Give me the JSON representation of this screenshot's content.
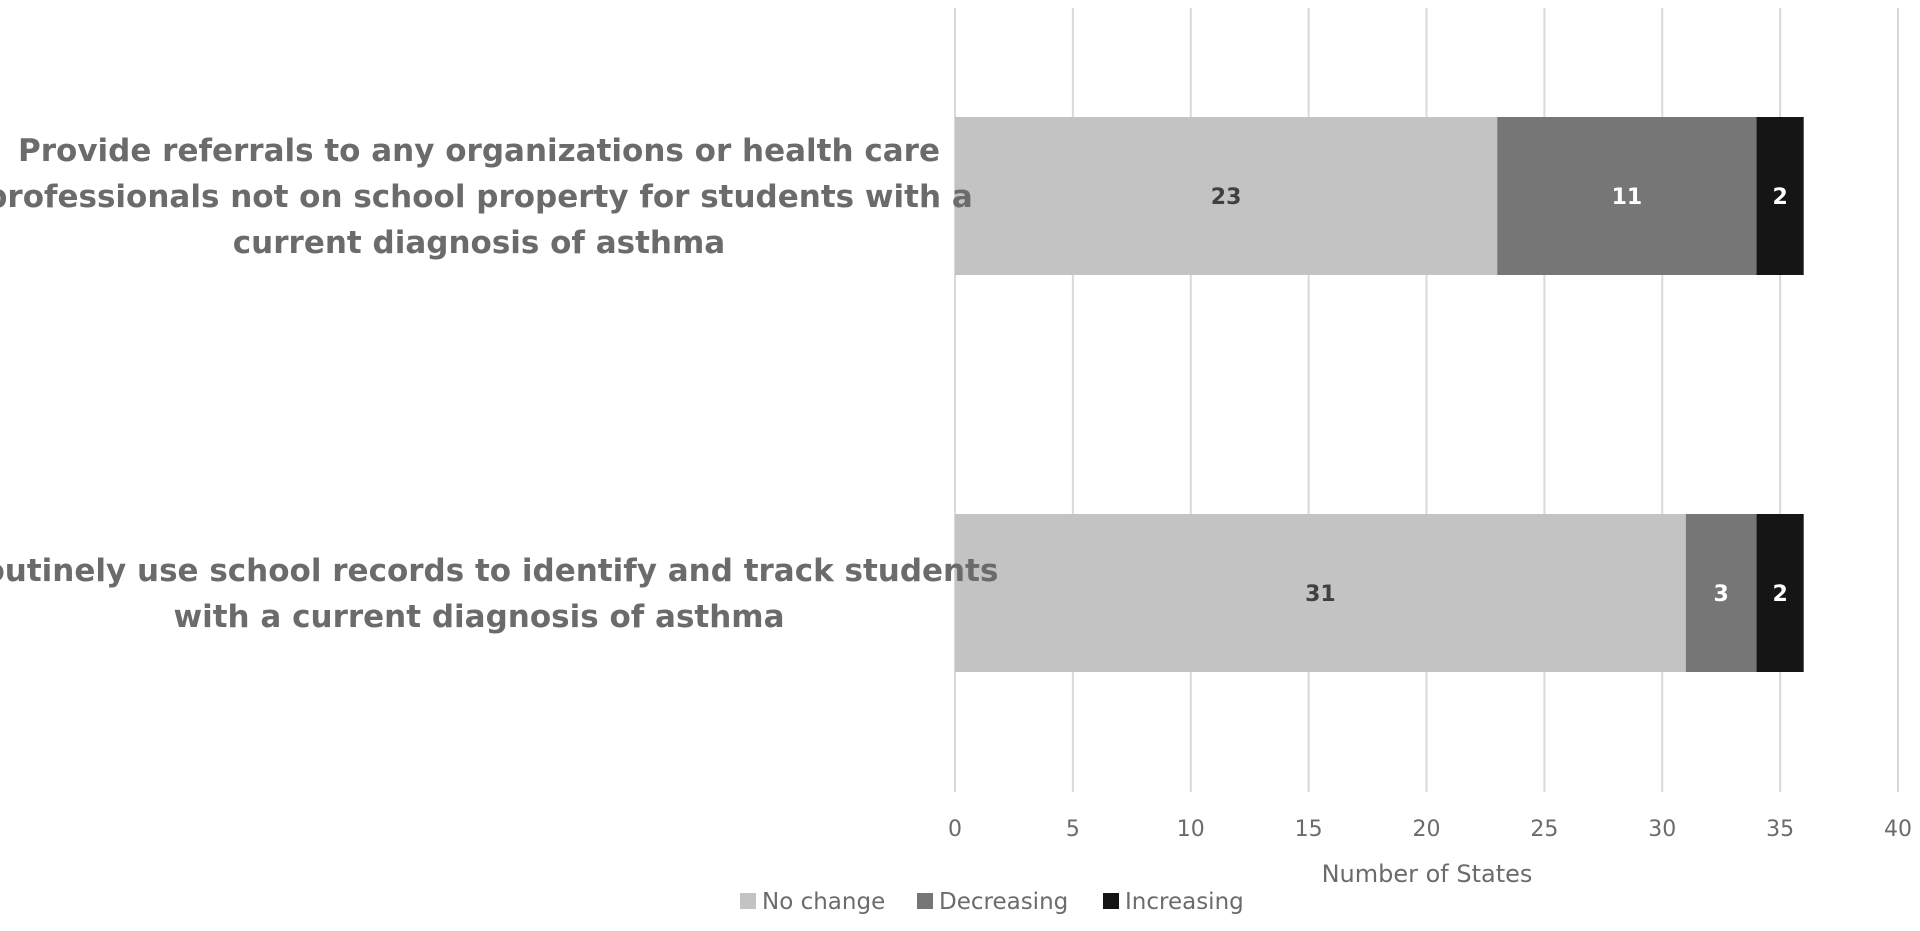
{
  "chart_data": {
    "type": "bar",
    "orientation": "horizontal",
    "stacked": true,
    "categories": [
      "Provide referrals to any organizations or health care professionals not on school property for students with a current diagnosis of asthma",
      "Routinely use school records to identify and track students with a current diagnosis of asthma"
    ],
    "category_lines": [
      [
        "Provide referrals to any organizations or health care",
        "professionals not on school property for students with a",
        "current diagnosis of asthma"
      ],
      [
        "Routinely use school records to identify and track students",
        "with a current diagnosis of asthma"
      ]
    ],
    "series": [
      {
        "name": "No change",
        "values": [
          23,
          31
        ],
        "color": "#c3c3c3",
        "label_color": "#404040"
      },
      {
        "name": "Decreasing",
        "values": [
          11,
          3
        ],
        "color": "#767676",
        "label_color": "#ffffff"
      },
      {
        "name": "Increasing",
        "values": [
          2,
          2
        ],
        "color": "#151515",
        "label_color": "#ffffff"
      }
    ],
    "xlabel": "Number of States",
    "xlim": [
      0,
      40
    ],
    "xticks": [
      0,
      5,
      10,
      15,
      20,
      25,
      30,
      35,
      40
    ],
    "grid": "vertical",
    "legend_position": "bottom",
    "gridline_color": "#d9d9d9"
  }
}
